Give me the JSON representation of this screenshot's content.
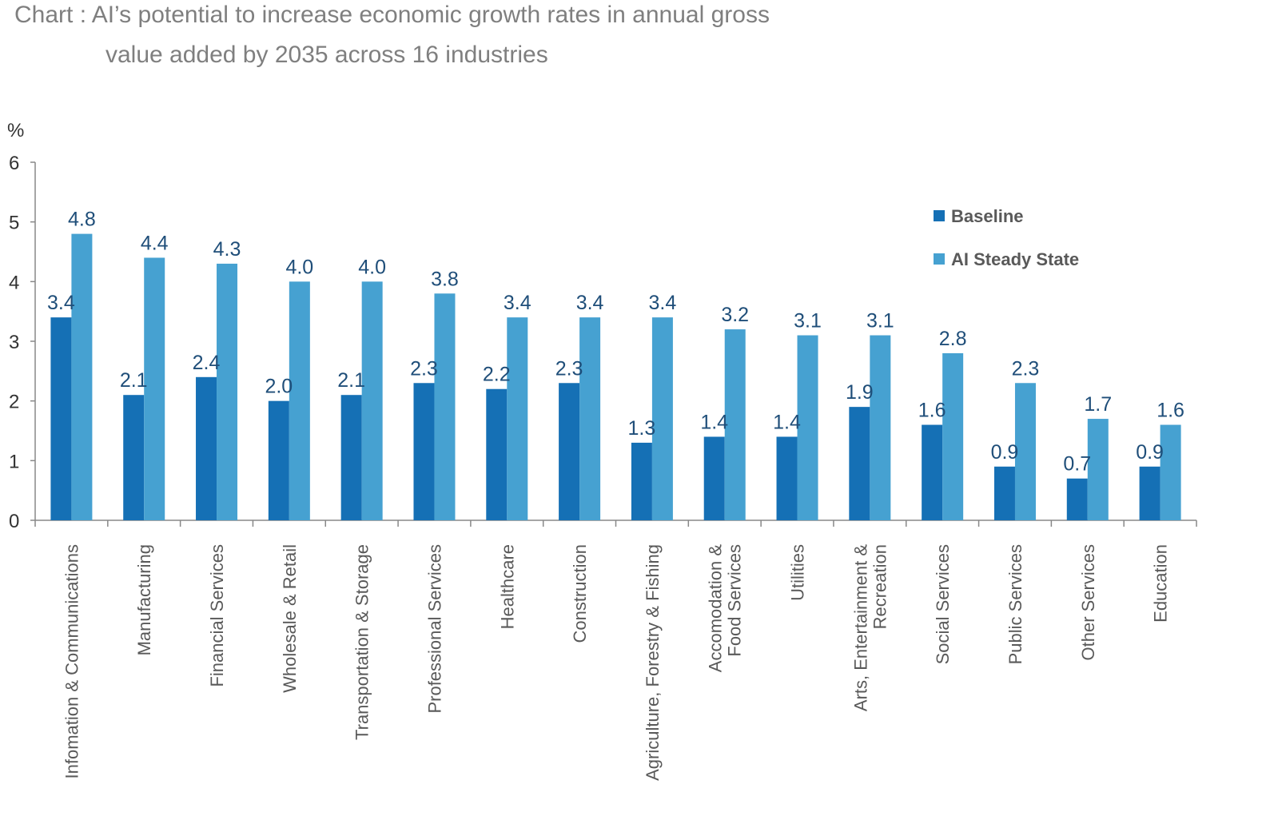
{
  "title_lines": [
    "Chart : AI’s potential to increase economic growth rates in annual gross",
    "value added by 2035 across 16 industries"
  ],
  "chart_data": {
    "type": "bar",
    "title": "Chart : AI’s potential to increase economic growth rates in annual gross value added by 2035 across 16 industries",
    "ylabel": "%",
    "ylim": [
      0,
      6
    ],
    "yticks": [
      "0",
      "1",
      "2",
      "3",
      "4",
      "5",
      "6"
    ],
    "grid": false,
    "legend_position": "top-right",
    "categories": [
      [
        "Infomation & Communications"
      ],
      [
        "Manufacturing"
      ],
      [
        "Financial Services"
      ],
      [
        "Wholesale & Retail"
      ],
      [
        "Transportation & Storage"
      ],
      [
        "Professional Services"
      ],
      [
        "Healthcare"
      ],
      [
        "Construction"
      ],
      [
        "Agriculture, Forestry & Fishing"
      ],
      [
        "Accomodation &",
        "Food Services"
      ],
      [
        "Utilities"
      ],
      [
        "Arts, Entertainment &",
        "Recreation"
      ],
      [
        "Social Services"
      ],
      [
        "Public Services"
      ],
      [
        "Other Services"
      ],
      [
        "Education"
      ]
    ],
    "series": [
      {
        "name": "Baseline",
        "color": "#1570b5",
        "values": [
          3.4,
          2.1,
          2.4,
          2.0,
          2.1,
          2.3,
          2.2,
          2.3,
          1.3,
          1.4,
          1.4,
          1.9,
          1.6,
          0.9,
          0.7,
          0.9
        ],
        "labels": [
          "3.4",
          "2.1",
          "2.4",
          "2.0",
          "2.1",
          "2.3",
          "2.2",
          "2.3",
          "1.3",
          "1.4",
          "1.4",
          "1.9",
          "1.6",
          "0.9",
          "0.7",
          "0.9"
        ]
      },
      {
        "name": "AI Steady State",
        "color": "#46a1d1",
        "values": [
          4.8,
          4.4,
          4.3,
          4.0,
          4.0,
          3.8,
          3.4,
          3.4,
          3.4,
          3.2,
          3.1,
          3.1,
          2.8,
          2.3,
          1.7,
          1.6
        ],
        "labels": [
          "4.8",
          "4.4",
          "4.3",
          "4.0",
          "4.0",
          "3.8",
          "3.4",
          "3.4",
          "3.4",
          "3.2",
          "3.1",
          "3.1",
          "2.8",
          "2.3",
          "1.7",
          "1.6"
        ]
      }
    ]
  }
}
